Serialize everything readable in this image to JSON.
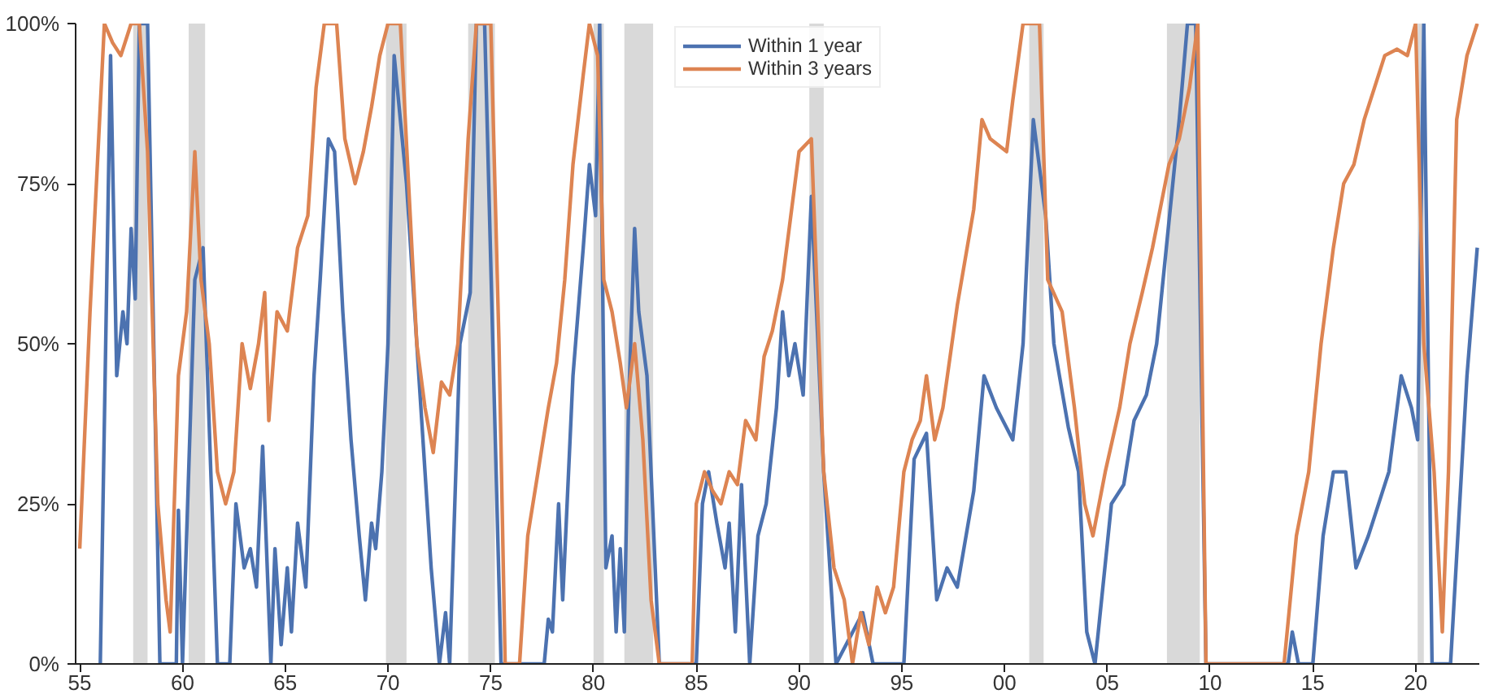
{
  "chart_data": {
    "type": "line",
    "xlim": [
      1954.8,
      2023.1
    ],
    "ylim": [
      0,
      100
    ],
    "xticks": [
      {
        "value": 1955,
        "label": "55"
      },
      {
        "value": 1960,
        "label": "60"
      },
      {
        "value": 1965,
        "label": "65"
      },
      {
        "value": 1970,
        "label": "70"
      },
      {
        "value": 1975,
        "label": "75"
      },
      {
        "value": 1980,
        "label": "80"
      },
      {
        "value": 1985,
        "label": "85"
      },
      {
        "value": 1990,
        "label": "90"
      },
      {
        "value": 1995,
        "label": "95"
      },
      {
        "value": 2000,
        "label": "00"
      },
      {
        "value": 2005,
        "label": "05"
      },
      {
        "value": 2010,
        "label": "10"
      },
      {
        "value": 2015,
        "label": "15"
      },
      {
        "value": 2020,
        "label": "20"
      }
    ],
    "yticks": [
      {
        "value": 0,
        "label": "0%"
      },
      {
        "value": 25,
        "label": "25%"
      },
      {
        "value": 50,
        "label": "50%"
      },
      {
        "value": 75,
        "label": "75%"
      },
      {
        "value": 100,
        "label": "100%"
      }
    ],
    "grid": false,
    "legend": "top",
    "line_style": "solid",
    "bands": [
      {
        "axis": "x",
        "from": 1957.6,
        "to": 1958.3,
        "color": "#d9d9d9"
      },
      {
        "axis": "x",
        "from": 1960.3,
        "to": 1961.1,
        "color": "#d9d9d9"
      },
      {
        "axis": "x",
        "from": 1969.9,
        "to": 1970.9,
        "color": "#d9d9d9"
      },
      {
        "axis": "x",
        "from": 1973.9,
        "to": 1975.2,
        "color": "#d9d9d9"
      },
      {
        "axis": "x",
        "from": 1980.0,
        "to": 1980.5,
        "color": "#d9d9d9"
      },
      {
        "axis": "x",
        "from": 1981.5,
        "to": 1982.9,
        "color": "#d9d9d9"
      },
      {
        "axis": "x",
        "from": 1990.5,
        "to": 1991.2,
        "color": "#d9d9d9"
      },
      {
        "axis": "x",
        "from": 2001.2,
        "to": 2001.9,
        "color": "#d9d9d9"
      },
      {
        "axis": "x",
        "from": 2007.9,
        "to": 2009.5,
        "color": "#d9d9d9"
      },
      {
        "axis": "x",
        "from": 2020.1,
        "to": 2020.4,
        "color": "#d9d9d9"
      }
    ],
    "series": [
      {
        "name": "Within 1 year",
        "color": "#4c72b0",
        "x": [
          1956.0,
          1956.5,
          1956.8,
          1957.1,
          1957.3,
          1957.5,
          1957.7,
          1957.9,
          1958.3,
          1958.9,
          1959.7,
          1959.8,
          1960.0,
          1960.6,
          1961.0,
          1961.7,
          1962.3,
          1962.6,
          1963.0,
          1963.3,
          1963.6,
          1963.9,
          1964.3,
          1964.5,
          1964.8,
          1965.1,
          1965.3,
          1965.6,
          1966.0,
          1966.4,
          1966.7,
          1967.1,
          1967.4,
          1967.8,
          1968.2,
          1968.6,
          1968.9,
          1969.2,
          1969.4,
          1969.7,
          1970.0,
          1970.3,
          1970.9,
          1971.5,
          1971.9,
          1972.1,
          1972.5,
          1972.8,
          1973.0,
          1973.5,
          1974.0,
          1974.3,
          1974.7,
          1975.5,
          1977.6,
          1977.8,
          1978.0,
          1978.3,
          1978.5,
          1979.0,
          1979.5,
          1979.8,
          1980.1,
          1980.3,
          1980.6,
          1980.9,
          1981.1,
          1981.3,
          1981.5,
          1981.7,
          1982.0,
          1982.2,
          1982.6,
          1983.2,
          1985.0,
          1985.3,
          1985.6,
          1986.0,
          1986.4,
          1986.6,
          1986.9,
          1987.2,
          1987.6,
          1988.0,
          1988.4,
          1988.9,
          1989.2,
          1989.5,
          1989.8,
          1990.2,
          1990.6,
          1991.2,
          1991.8,
          1993.1,
          1993.6,
          1994.0,
          1995.1,
          1995.6,
          1996.2,
          1996.7,
          1997.2,
          1997.7,
          1998.5,
          1999.0,
          1999.6,
          2000.4,
          2000.9,
          2001.4,
          2002.0,
          2002.4,
          2003.1,
          2003.6,
          2004.0,
          2004.4,
          2005.2,
          2005.8,
          2006.3,
          2006.9,
          2007.4,
          2008.5,
          2008.9,
          2009.3,
          2009.8,
          2013.8,
          2014.0,
          2014.3,
          2015.0,
          2015.5,
          2016.0,
          2016.6,
          2017.1,
          2017.7,
          2018.7,
          2019.3,
          2019.8,
          2020.1,
          2020.4,
          2020.8,
          2021.7,
          2022.5,
          2023.0
        ],
        "values": [
          0,
          95,
          45,
          55,
          50,
          68,
          57,
          100,
          100,
          0,
          0,
          24,
          0,
          60,
          65,
          0,
          0,
          25,
          15,
          18,
          12,
          34,
          0,
          18,
          3,
          15,
          5,
          22,
          12,
          45,
          60,
          82,
          80,
          55,
          35,
          20,
          10,
          22,
          18,
          30,
          50,
          95,
          75,
          45,
          25,
          15,
          0,
          8,
          0,
          50,
          58,
          100,
          100,
          0,
          0,
          7,
          5,
          25,
          10,
          45,
          65,
          78,
          70,
          100,
          15,
          20,
          5,
          18,
          5,
          40,
          68,
          55,
          45,
          0,
          0,
          25,
          30,
          22,
          15,
          22,
          5,
          28,
          0,
          20,
          25,
          40,
          55,
          45,
          50,
          42,
          73,
          30,
          0,
          8,
          0,
          0,
          0,
          32,
          36,
          10,
          15,
          12,
          27,
          45,
          40,
          35,
          50,
          85,
          70,
          50,
          37,
          30,
          5,
          0,
          25,
          28,
          38,
          42,
          50,
          85,
          100,
          100,
          0,
          0,
          5,
          0,
          0,
          20,
          30,
          30,
          15,
          20,
          30,
          45,
          40,
          35,
          100,
          0,
          0,
          45,
          65
        ]
      },
      {
        "name": "Within 3 years",
        "color": "#dd8452",
        "x": [
          1955.0,
          1955.5,
          1956.2,
          1956.6,
          1957.0,
          1957.5,
          1957.9,
          1958.3,
          1958.8,
          1959.2,
          1959.4,
          1959.8,
          1960.2,
          1960.6,
          1960.9,
          1961.3,
          1961.7,
          1962.1,
          1962.5,
          1962.9,
          1963.3,
          1963.7,
          1964.0,
          1964.2,
          1964.6,
          1965.1,
          1965.6,
          1966.1,
          1966.5,
          1966.9,
          1967.5,
          1967.9,
          1968.4,
          1968.8,
          1969.2,
          1969.6,
          1970.0,
          1970.6,
          1971.0,
          1971.4,
          1971.8,
          1972.2,
          1972.6,
          1973.0,
          1973.4,
          1973.9,
          1974.3,
          1975.0,
          1975.4,
          1975.7,
          1976.4,
          1976.8,
          1977.3,
          1977.8,
          1978.2,
          1978.6,
          1979.0,
          1979.5,
          1979.8,
          1980.2,
          1980.5,
          1980.9,
          1981.3,
          1981.6,
          1982.0,
          1982.4,
          1982.8,
          1983.2,
          1984.8,
          1985.0,
          1985.4,
          1985.8,
          1986.2,
          1986.6,
          1987.0,
          1987.4,
          1987.9,
          1988.3,
          1988.7,
          1989.2,
          1989.6,
          1990.0,
          1990.6,
          1991.2,
          1991.7,
          1992.2,
          1992.6,
          1993.0,
          1993.4,
          1993.8,
          1994.2,
          1994.6,
          1995.1,
          1995.5,
          1995.9,
          1996.2,
          1996.6,
          1997.0,
          1997.7,
          1998.5,
          1998.9,
          1999.3,
          2000.1,
          2000.4,
          2000.9,
          2001.7,
          2002.1,
          2002.8,
          2003.4,
          2003.9,
          2004.3,
          2004.9,
          2005.6,
          2006.1,
          2006.7,
          2007.2,
          2008.0,
          2008.5,
          2009.0,
          2009.4,
          2009.8,
          2013.6,
          2014.2,
          2014.8,
          2015.4,
          2016.0,
          2016.5,
          2017.0,
          2017.5,
          2018.0,
          2018.5,
          2019.1,
          2019.6,
          2020.0,
          2020.4,
          2020.9,
          2021.3,
          2021.6,
          2022.0,
          2022.5,
          2023.0
        ],
        "values": [
          18,
          55,
          100,
          97,
          95,
          100,
          100,
          80,
          25,
          10,
          5,
          45,
          55,
          80,
          60,
          50,
          30,
          25,
          30,
          50,
          43,
          50,
          58,
          38,
          55,
          52,
          65,
          70,
          90,
          100,
          100,
          82,
          75,
          80,
          87,
          95,
          100,
          100,
          75,
          50,
          40,
          33,
          44,
          42,
          50,
          82,
          100,
          100,
          50,
          0,
          0,
          20,
          30,
          40,
          47,
          60,
          78,
          92,
          100,
          95,
          60,
          55,
          47,
          40,
          50,
          35,
          10,
          0,
          0,
          25,
          30,
          27,
          25,
          30,
          28,
          38,
          35,
          48,
          52,
          60,
          70,
          80,
          82,
          30,
          15,
          10,
          0,
          8,
          3,
          12,
          8,
          12,
          30,
          35,
          38,
          45,
          35,
          40,
          56,
          71,
          85,
          82,
          80,
          88,
          100,
          100,
          60,
          55,
          40,
          25,
          20,
          30,
          40,
          50,
          58,
          65,
          78,
          82,
          90,
          100,
          0,
          0,
          20,
          30,
          50,
          65,
          75,
          78,
          85,
          90,
          95,
          96,
          95,
          100,
          50,
          30,
          5,
          30,
          85,
          95,
          100
        ]
      }
    ]
  }
}
